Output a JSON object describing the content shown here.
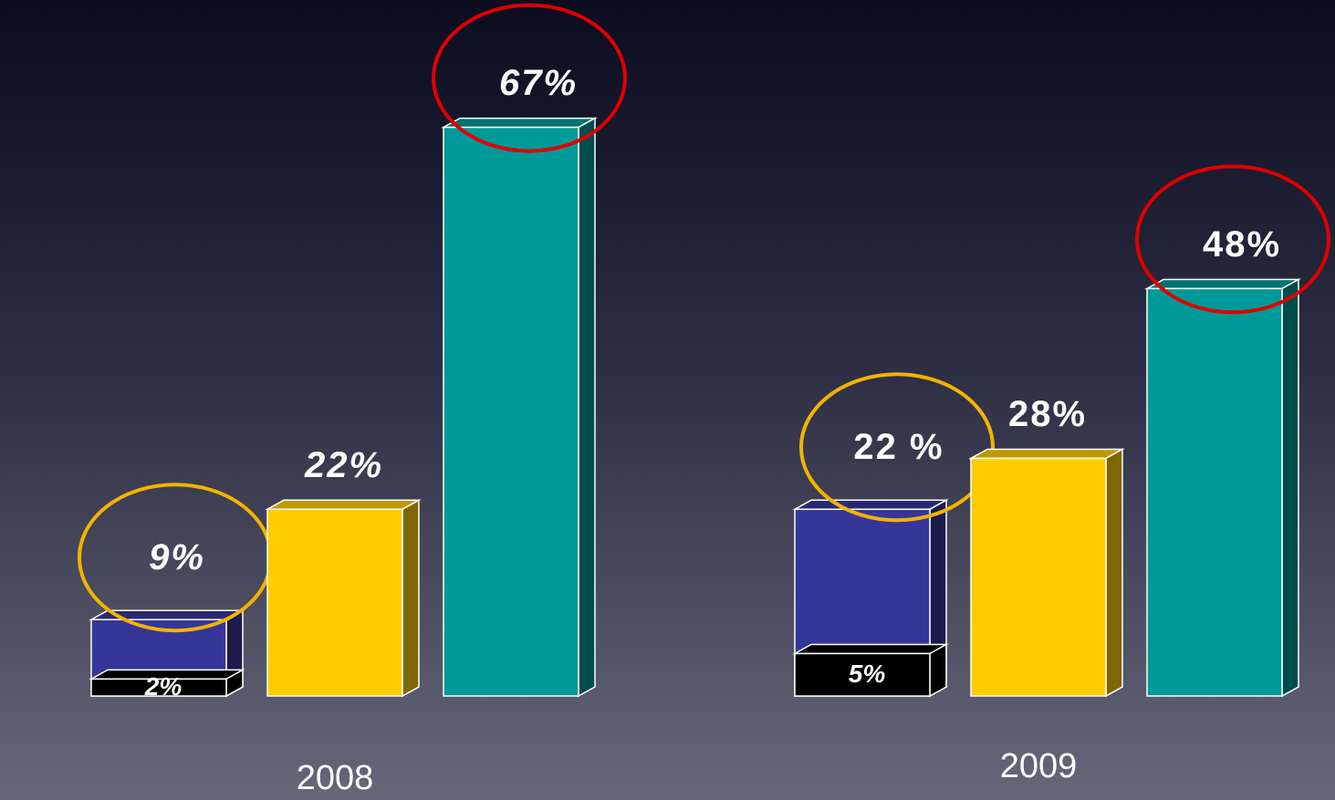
{
  "chart_data": {
    "type": "bar3d",
    "categories": [
      "2008",
      "2009"
    ],
    "ylim": [
      0,
      82
    ],
    "series": [
      {
        "color": "#363699",
        "values": [
          9,
          22
        ],
        "value_labels": [
          "9%",
          "22 %"
        ],
        "highlight": "#f2b300",
        "inner": {
          "color": "#000000",
          "values": [
            2,
            5
          ],
          "value_labels": [
            "2%",
            "5%"
          ]
        }
      },
      {
        "color": "#ffcc00",
        "values": [
          22,
          28
        ],
        "value_labels": [
          "22%",
          "28%"
        ]
      },
      {
        "color": "#009999",
        "values": [
          67,
          48
        ],
        "value_labels": [
          "67%",
          "48%"
        ],
        "highlight": "#e00000"
      }
    ]
  }
}
